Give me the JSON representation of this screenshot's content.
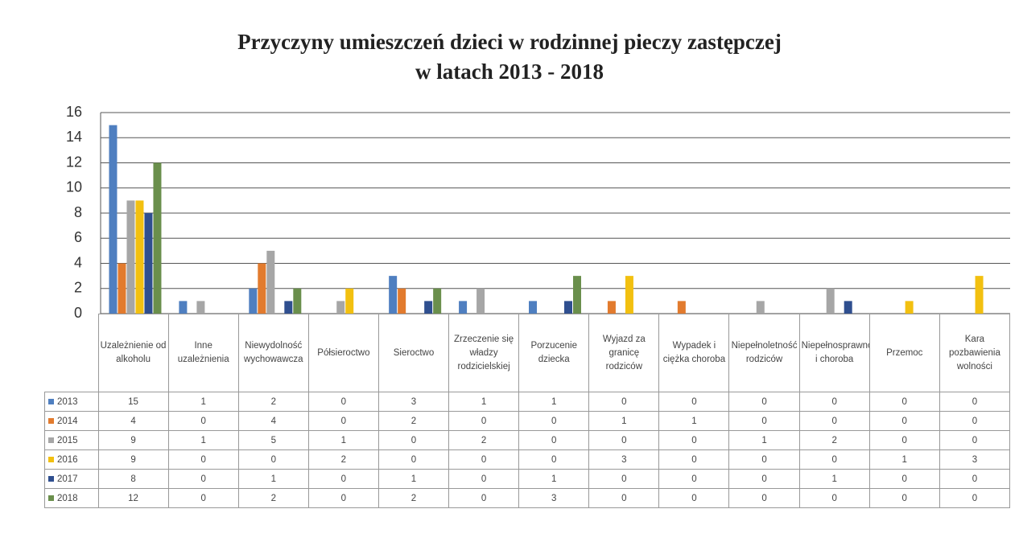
{
  "chart_data": {
    "type": "bar",
    "title": "Przyczyny  umieszczeń dzieci w rodzinnej  pieczy zastępczej\nw latach 2013 - 2018",
    "categories": [
      "Uzależnienie od alkoholu",
      "Inne uzależnienia",
      "Niewydolność wychowawcza",
      "Półsieroctwo",
      "Sieroctwo",
      "Zrzeczenie się władzy rodzicielskiej",
      "Porzucenie dziecka",
      "Wyjazd za granicę rodziców",
      "Wypadek i ciężka choroba",
      "Niepełnoletność rodziców",
      "Niepełnosprawność i choroba",
      "Przemoc",
      "Kara pozbawienia wolności"
    ],
    "series": [
      {
        "name": "2013",
        "color": "#4f7fc0",
        "values": [
          15,
          1,
          2,
          0,
          3,
          1,
          1,
          0,
          0,
          0,
          0,
          0,
          0
        ]
      },
      {
        "name": "2014",
        "color": "#e27b2e",
        "values": [
          4,
          0,
          4,
          0,
          2,
          0,
          0,
          1,
          1,
          0,
          0,
          0,
          0
        ]
      },
      {
        "name": "2015",
        "color": "#a6a6a6",
        "values": [
          9,
          1,
          5,
          1,
          0,
          2,
          0,
          0,
          0,
          1,
          2,
          0,
          0
        ]
      },
      {
        "name": "2016",
        "color": "#f2c010",
        "values": [
          9,
          0,
          0,
          2,
          0,
          0,
          0,
          3,
          0,
          0,
          0,
          1,
          3
        ]
      },
      {
        "name": "2017",
        "color": "#2f4f8f",
        "values": [
          8,
          0,
          1,
          0,
          1,
          0,
          1,
          0,
          0,
          0,
          1,
          0,
          0
        ]
      },
      {
        "name": "2018",
        "color": "#6a8f4c",
        "values": [
          12,
          0,
          2,
          0,
          2,
          0,
          3,
          0,
          0,
          0,
          0,
          0,
          0
        ]
      }
    ],
    "ylim": [
      0,
      16
    ],
    "yticks": [
      0,
      2,
      4,
      6,
      8,
      10,
      12,
      14,
      16
    ],
    "grid": true,
    "data_table": true
  }
}
